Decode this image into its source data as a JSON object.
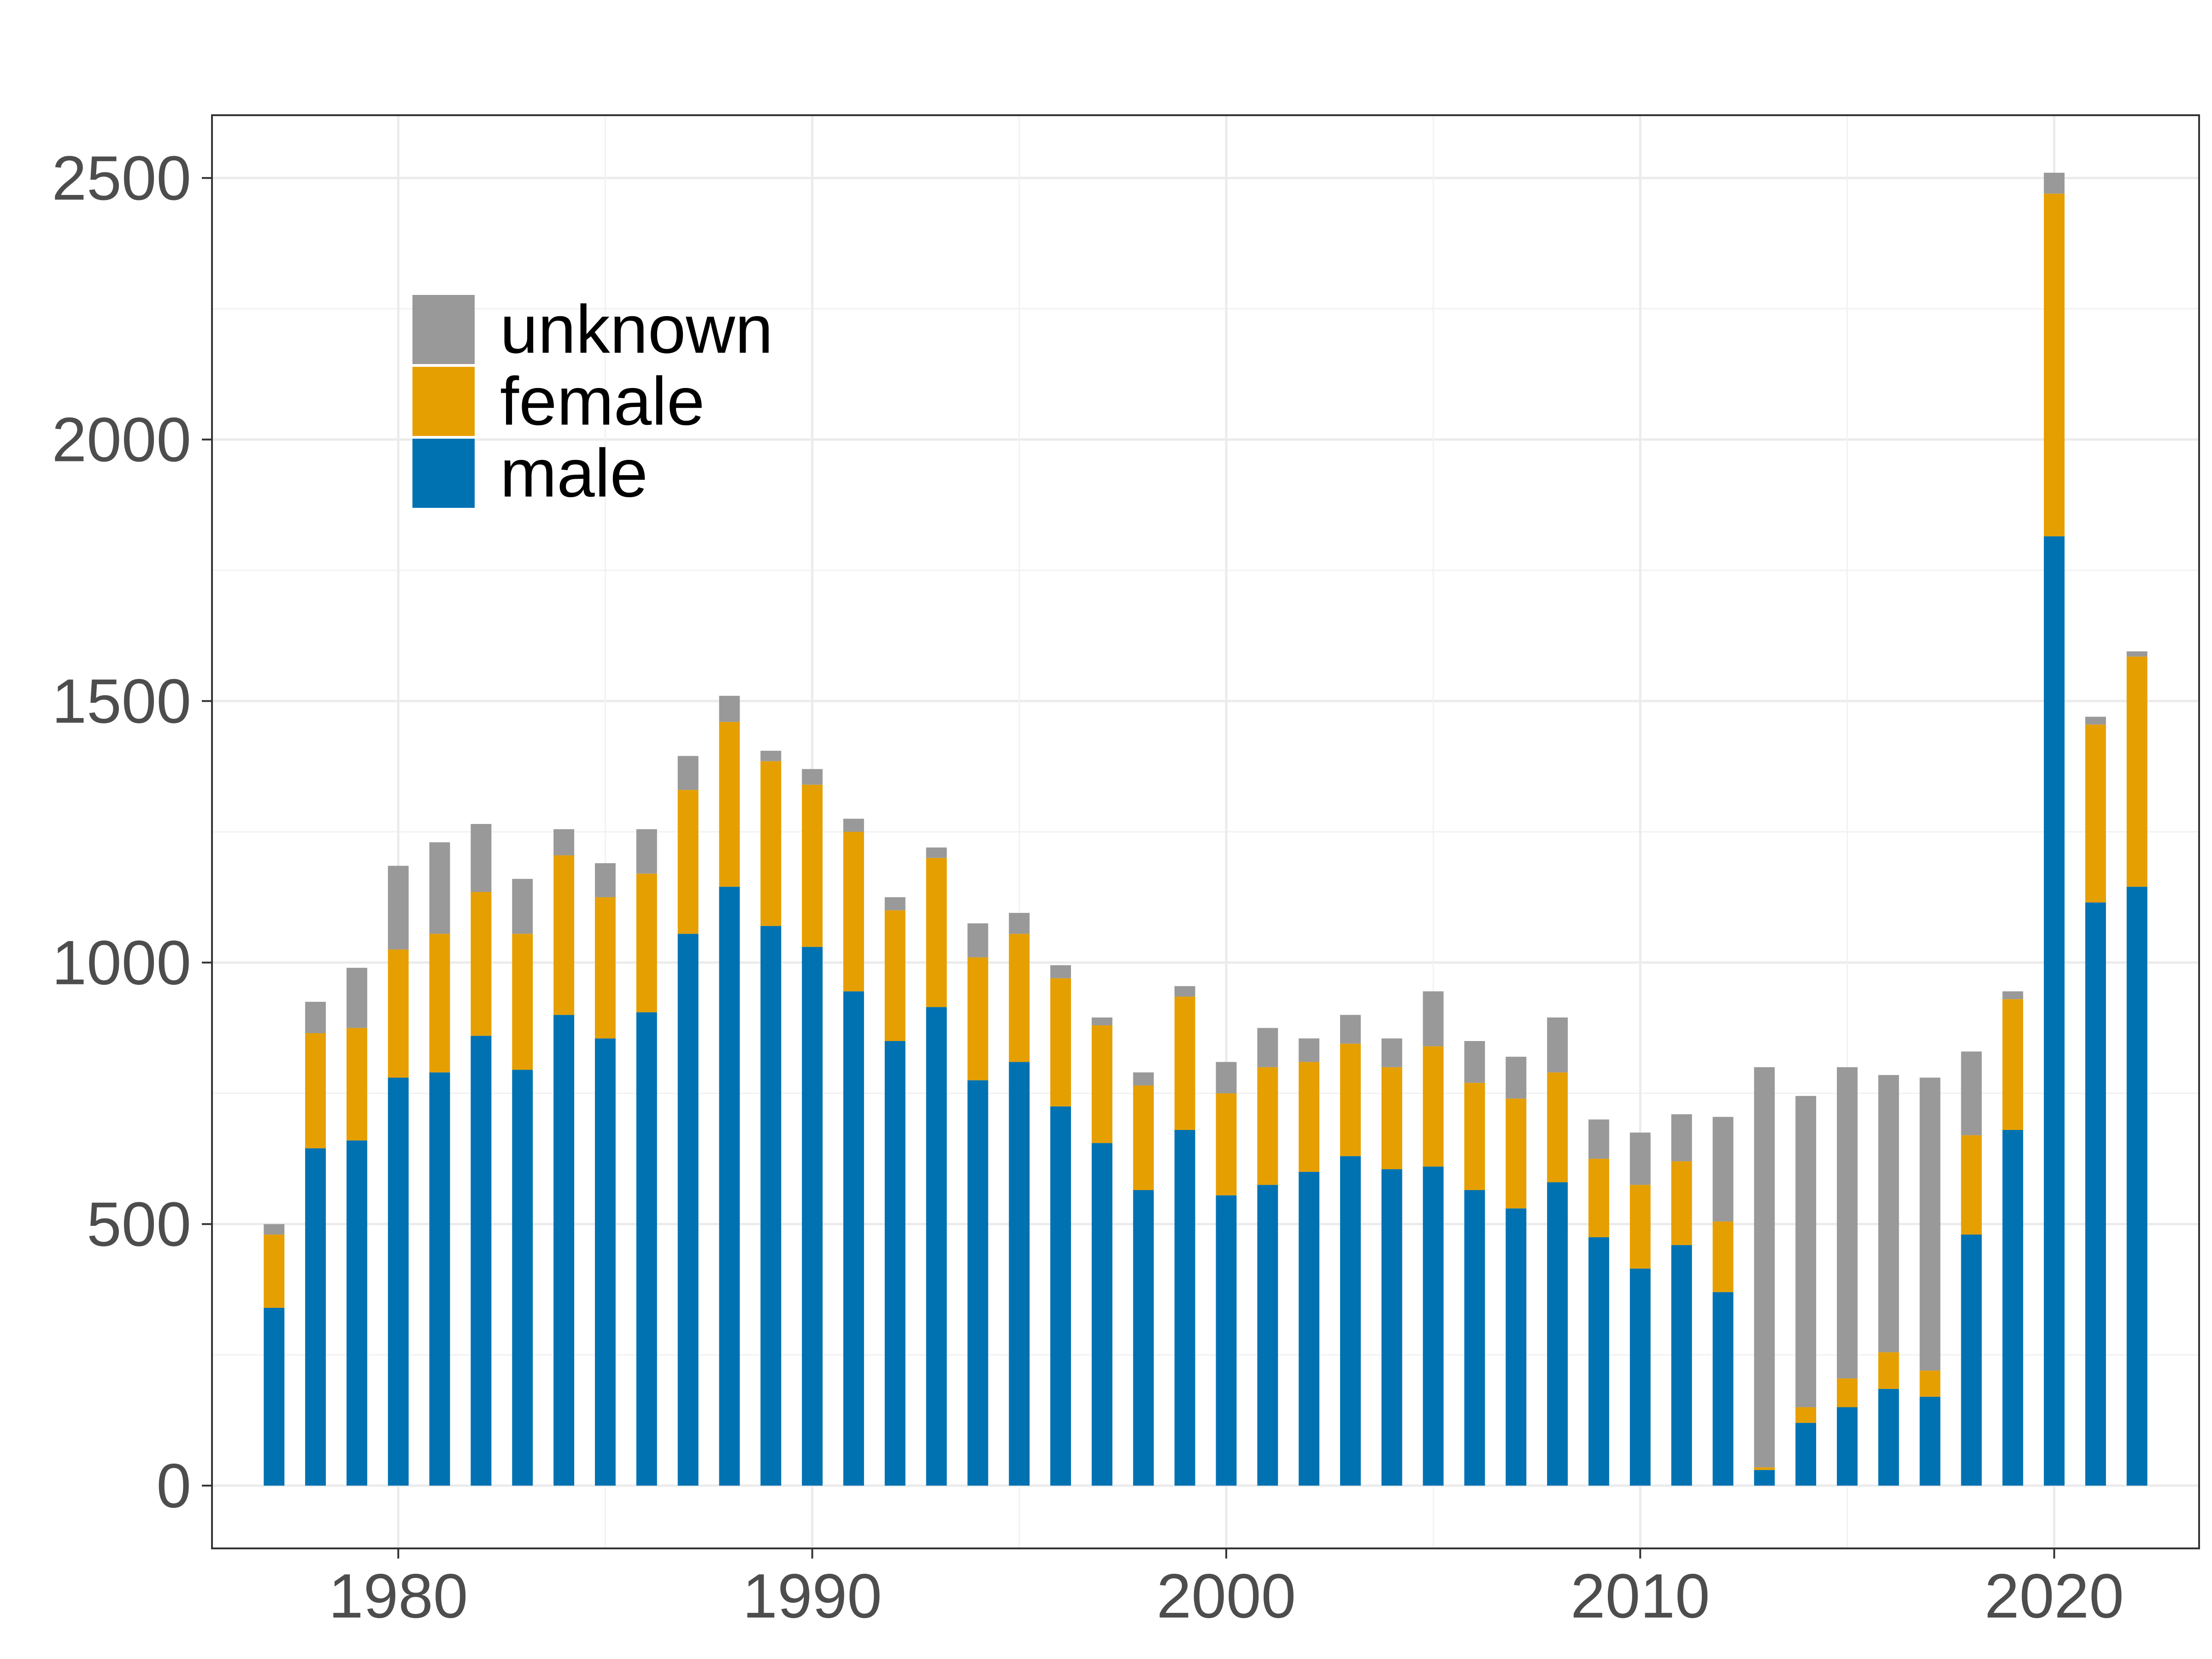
{
  "chart_data": {
    "type": "bar",
    "stacked": true,
    "x": [
      1977,
      1978,
      1979,
      1980,
      1981,
      1982,
      1983,
      1984,
      1985,
      1986,
      1987,
      1988,
      1989,
      1990,
      1991,
      1992,
      1993,
      1994,
      1995,
      1996,
      1997,
      1998,
      1999,
      2000,
      2001,
      2002,
      2003,
      2004,
      2005,
      2006,
      2007,
      2008,
      2009,
      2010,
      2011,
      2012,
      2013,
      2014,
      2015,
      2016,
      2017,
      2018,
      2019,
      2020,
      2021,
      2022
    ],
    "series": [
      {
        "name": "male",
        "color": "#0072B2",
        "values": [
          340,
          645,
          660,
          780,
          790,
          860,
          795,
          900,
          855,
          905,
          1055,
          1145,
          1070,
          1030,
          945,
          850,
          915,
          775,
          810,
          725,
          655,
          565,
          680,
          555,
          575,
          600,
          630,
          605,
          610,
          565,
          530,
          580,
          475,
          415,
          460,
          370,
          30,
          120,
          150,
          185,
          170,
          480,
          680,
          1815,
          1115,
          1145
        ]
      },
      {
        "name": "female",
        "color": "#E69F00",
        "values": [
          140,
          220,
          215,
          245,
          265,
          275,
          260,
          305,
          270,
          265,
          275,
          315,
          315,
          310,
          305,
          250,
          285,
          235,
          245,
          245,
          225,
          200,
          255,
          195,
          225,
          210,
          215,
          195,
          230,
          205,
          210,
          210,
          150,
          160,
          160,
          135,
          5,
          30,
          55,
          70,
          50,
          190,
          250,
          655,
          340,
          440
        ]
      },
      {
        "name": "unknown",
        "color": "#999999",
        "values": [
          20,
          60,
          115,
          160,
          175,
          130,
          105,
          50,
          65,
          85,
          65,
          50,
          20,
          30,
          25,
          25,
          20,
          65,
          40,
          25,
          15,
          25,
          20,
          60,
          75,
          45,
          55,
          55,
          105,
          80,
          80,
          105,
          75,
          100,
          90,
          200,
          765,
          595,
          595,
          530,
          560,
          160,
          15,
          40,
          15,
          10
        ]
      }
    ],
    "legend": [
      "unknown",
      "female",
      "male"
    ],
    "legend_position": "top-left",
    "x_ticks": [
      1980,
      1990,
      2000,
      2010,
      2020
    ],
    "y_ticks": [
      0,
      500,
      1000,
      1500,
      2000,
      2500
    ],
    "xlim": [
      1975.5,
      2023.5
    ],
    "ylim": [
      -120,
      2620
    ],
    "grid": true,
    "title": "",
    "xlabel": "",
    "ylabel": ""
  }
}
